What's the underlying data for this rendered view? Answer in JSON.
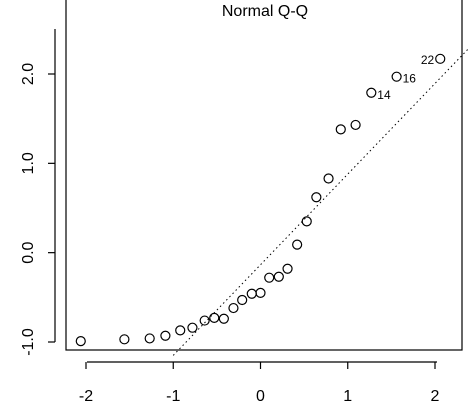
{
  "chart_data": {
    "type": "scatter",
    "title": "Normal Q-Q",
    "xlabel": "",
    "ylabel": "",
    "xlim": [
      -2.2,
      2.3
    ],
    "ylim": [
      -1.1,
      2.6
    ],
    "x_ticks": [
      -2,
      -1,
      0,
      1,
      2
    ],
    "x_tick_labels": [
      "-2",
      "-1",
      "0",
      "1",
      "2"
    ],
    "y_ticks": [
      -1.0,
      0.0,
      1.0,
      2.0
    ],
    "y_tick_labels": [
      "-1.0",
      "0.0",
      "1.0",
      "2.0"
    ],
    "grid": false,
    "legend": "none",
    "series": [
      {
        "points": [
          {
            "x": -2.06,
            "y": -0.99
          },
          {
            "x": -1.56,
            "y": -0.97
          },
          {
            "x": -1.27,
            "y": -0.96
          },
          {
            "x": -1.09,
            "y": -0.93
          },
          {
            "x": -0.92,
            "y": -0.87
          },
          {
            "x": -0.78,
            "y": -0.84
          },
          {
            "x": -0.64,
            "y": -0.76
          },
          {
            "x": -0.53,
            "y": -0.73
          },
          {
            "x": -0.42,
            "y": -0.74
          },
          {
            "x": -0.31,
            "y": -0.62
          },
          {
            "x": -0.21,
            "y": -0.53
          },
          {
            "x": -0.1,
            "y": -0.46
          },
          {
            "x": 0.0,
            "y": -0.45
          },
          {
            "x": 0.1,
            "y": -0.28
          },
          {
            "x": 0.21,
            "y": -0.27
          },
          {
            "x": 0.31,
            "y": -0.18
          },
          {
            "x": 0.42,
            "y": 0.09
          },
          {
            "x": 0.53,
            "y": 0.35
          },
          {
            "x": 0.64,
            "y": 0.62
          },
          {
            "x": 0.78,
            "y": 0.83
          },
          {
            "x": 0.92,
            "y": 1.38
          },
          {
            "x": 1.09,
            "y": 1.43
          },
          {
            "x": 1.27,
            "y": 1.79,
            "label": "14"
          },
          {
            "x": 1.56,
            "y": 1.97,
            "label": "16"
          },
          {
            "x": 2.06,
            "y": 2.17,
            "label": "22"
          }
        ]
      }
    ],
    "reference_line": {
      "x1": -1.0,
      "y1": -1.15,
      "x2": 2.4,
      "y2": 2.3
    }
  }
}
